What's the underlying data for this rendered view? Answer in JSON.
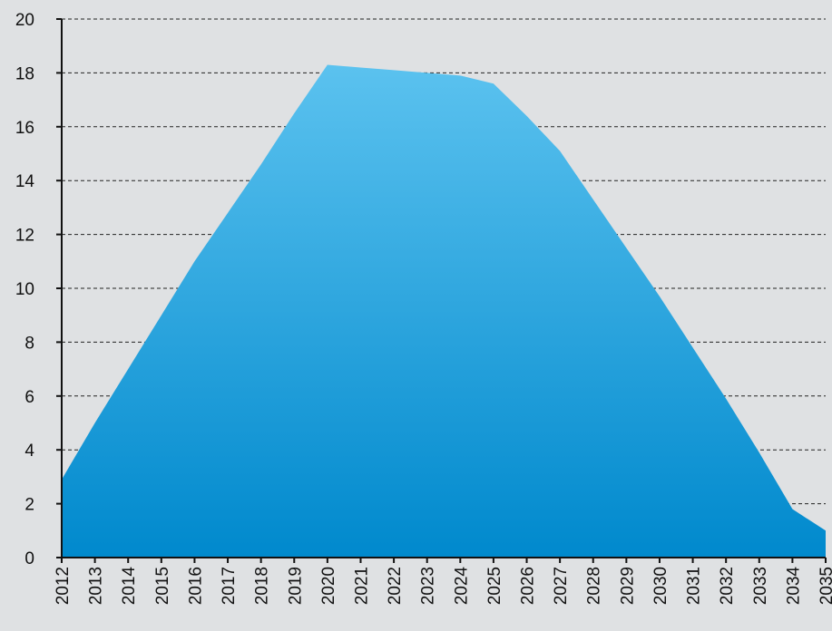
{
  "chart_data": {
    "type": "area",
    "title": "",
    "xlabel": "",
    "ylabel": "",
    "x": [
      "2012",
      "2013",
      "2014",
      "2015",
      "2016",
      "2017",
      "2018",
      "2019",
      "2020",
      "2021",
      "2022",
      "2023",
      "2024",
      "2025",
      "2026",
      "2027",
      "2028",
      "2029",
      "2030",
      "2031",
      "2032",
      "2033",
      "2034",
      "2035"
    ],
    "values": [
      2.9,
      5.0,
      7.0,
      9.0,
      11.0,
      12.8,
      14.6,
      16.5,
      18.3,
      18.2,
      18.1,
      18.0,
      17.9,
      17.6,
      16.4,
      15.1,
      13.3,
      11.5,
      9.7,
      7.8,
      5.9,
      3.9,
      1.8,
      1.0
    ],
    "ylim": [
      0,
      20
    ],
    "yticks": [
      0,
      2,
      4,
      6,
      8,
      10,
      12,
      14,
      16,
      18,
      20
    ],
    "grid": true,
    "colors": {
      "fill_top": "#5bc2ef",
      "fill_bottom": "#0089cd",
      "background": "#dfe1e3"
    }
  }
}
